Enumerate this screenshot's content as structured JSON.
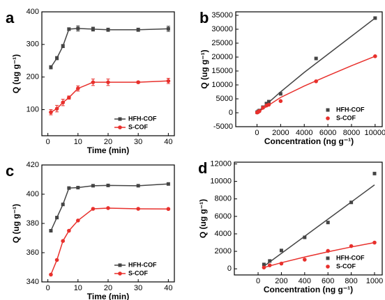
{
  "chart_data": [
    {
      "type": "line",
      "label": "a",
      "xlabel": "Time (min)",
      "ylabel": "Q (ug g⁻¹)",
      "x": [
        1,
        3,
        5,
        7,
        10,
        15,
        20,
        30,
        40
      ],
      "xlim": [
        -2,
        42
      ],
      "xticks": [
        0,
        10,
        20,
        30,
        40
      ],
      "ylim": [
        20,
        400
      ],
      "yticks": [
        100,
        200,
        300,
        400
      ],
      "legend": "lower right",
      "series": [
        {
          "name": "HFH-COF",
          "color": "#444444",
          "marker": "square",
          "values": [
            230,
            258,
            295,
            347,
            349,
            347,
            345,
            345,
            348
          ],
          "errors": [
            5,
            5,
            5,
            4,
            8,
            6,
            5,
            5,
            8
          ]
        },
        {
          "name": "S-COF",
          "color": "#e8302c",
          "marker": "circle",
          "values": [
            92,
            103,
            122,
            137,
            165,
            184,
            184,
            184,
            188
          ],
          "errors": [
            8,
            10,
            10,
            5,
            8,
            10,
            10,
            3,
            8
          ]
        }
      ]
    },
    {
      "type": "scatter",
      "label": "b",
      "xlabel": "Concentration (ng g⁻¹)",
      "ylabel": "Q (ug g⁻¹)",
      "xlim": [
        -1800,
        10600
      ],
      "xticks": [
        0,
        2000,
        4000,
        6000,
        8000,
        10000
      ],
      "ylim": [
        -5000,
        36250
      ],
      "yticks": [
        -5000,
        0,
        5000,
        10000,
        15000,
        20000,
        25000,
        30000,
        35000
      ],
      "legend": "lower right",
      "series": [
        {
          "name": "HFH-COF",
          "color": "#444444",
          "marker": "square",
          "x": [
            10,
            100,
            200,
            500,
            800,
            1000,
            2000,
            5000,
            10000
          ],
          "values": [
            200,
            500,
            800,
            2000,
            3300,
            4000,
            6800,
            19500,
            34000
          ],
          "fit_x": [
            0,
            2000,
            4000,
            6000,
            8000,
            10000
          ],
          "fit_values": [
            0,
            7500,
            14500,
            21000,
            27500,
            34000
          ]
        },
        {
          "name": "S-COF",
          "color": "#e8302c",
          "marker": "circle",
          "x": [
            10,
            100,
            200,
            500,
            800,
            1000,
            2000,
            5000,
            10000
          ],
          "values": [
            100,
            300,
            600,
            1800,
            2600,
            2900,
            4200,
            11300,
            20300
          ],
          "fit_x": [
            0,
            2000,
            4000,
            6000,
            8000,
            10000
          ],
          "fit_values": [
            0,
            5500,
            9600,
            13300,
            16900,
            20300
          ]
        }
      ]
    },
    {
      "type": "line",
      "label": "c",
      "xlabel": "Time (min)",
      "ylabel": "Q (ug g⁻¹)",
      "x": [
        1,
        3,
        5,
        7,
        10,
        15,
        20,
        30,
        40
      ],
      "xlim": [
        -2,
        42
      ],
      "xticks": [
        0,
        10,
        20,
        30,
        40
      ],
      "ylim": [
        340,
        420
      ],
      "yticks": [
        340,
        360,
        380,
        400,
        420
      ],
      "legend": "lower right",
      "series": [
        {
          "name": "HFH-COF",
          "color": "#444444",
          "marker": "square",
          "values": [
            375,
            384,
            393,
            404.2,
            404.5,
            405.8,
            406,
            405.8,
            407
          ]
        },
        {
          "name": "S-COF",
          "color": "#e8302c",
          "marker": "circle",
          "values": [
            345,
            355,
            368,
            375,
            382,
            390,
            390.5,
            390,
            389.9
          ]
        }
      ]
    },
    {
      "type": "scatter",
      "label": "d",
      "xlabel": "Concentration (ng g⁻¹)",
      "ylabel": "Q (ug g⁻¹)",
      "xlim": [
        -204,
        1066
      ],
      "xticks": [
        0,
        200,
        400,
        600,
        800,
        1000
      ],
      "ylim": [
        -700,
        12200
      ],
      "yticks": [
        0,
        2000,
        4000,
        6000,
        8000,
        10000,
        12000
      ],
      "legend": "lower right",
      "series": [
        {
          "name": "HFH-COF",
          "color": "#444444",
          "marker": "square",
          "x": [
            50,
            100,
            200,
            400,
            600,
            800,
            1000
          ],
          "values": [
            500,
            900,
            2100,
            3600,
            5300,
            7600,
            10900
          ],
          "fit_x": [
            50,
            1000
          ],
          "fit_values": [
            300,
            9600
          ]
        },
        {
          "name": "S-COF",
          "color": "#e8302c",
          "marker": "circle",
          "x": [
            50,
            100,
            200,
            400,
            600,
            800,
            1000
          ],
          "values": [
            150,
            400,
            600,
            1050,
            2050,
            2600,
            3000
          ],
          "fit_x": [
            50,
            200,
            400,
            600,
            800,
            1000
          ],
          "fit_values": [
            150,
            700,
            1350,
            1950,
            2500,
            3000
          ]
        }
      ]
    }
  ]
}
